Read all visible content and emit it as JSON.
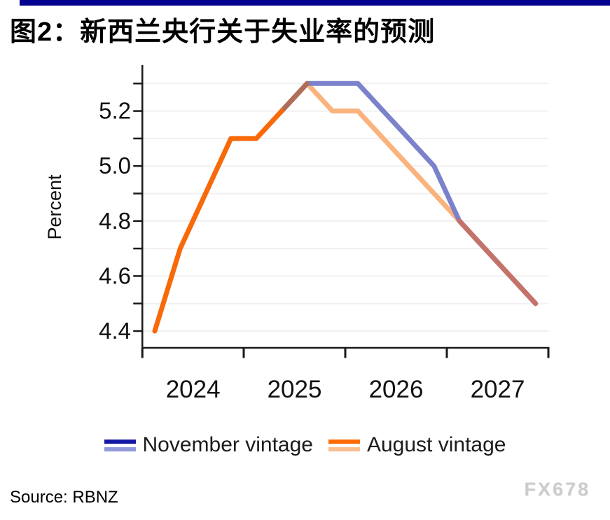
{
  "header": {
    "title": "图2：新西兰央行关于失业率的预测",
    "accent_color": "#02028e"
  },
  "chart_data": {
    "type": "line",
    "title": "图2：新西兰央行关于失业率的预测",
    "ylabel": "Percent",
    "ylim": [
      4.35,
      5.35
    ],
    "ytick_step": 0.1,
    "yticks_all": [
      4.4,
      4.5,
      4.6,
      4.7,
      4.8,
      4.9,
      5.0,
      5.1,
      5.2,
      5.3
    ],
    "yticks_labeled": [
      "4.4",
      "4.6",
      "4.8",
      "5.0",
      "5.2"
    ],
    "x_tick_years": [
      "2024",
      "2025",
      "2026",
      "2027"
    ],
    "grid": true,
    "legend_position": "bottom",
    "categories": [
      "2024Q1",
      "2024Q2",
      "2024Q3",
      "2024Q4",
      "2025Q1",
      "2025Q2",
      "2025Q3",
      "2025Q4",
      "2026Q1",
      "2026Q2",
      "2026Q3",
      "2026Q4",
      "2027Q1",
      "2027Q2",
      "2027Q3",
      "2027Q4"
    ],
    "series": [
      {
        "name": "November vintage",
        "start_index": 5,
        "values": [
          5.2,
          5.3,
          5.3,
          5.3,
          5.2,
          5.1,
          5.0,
          4.8,
          4.7,
          4.6,
          4.5
        ],
        "line_color": "#7b82cb",
        "legend_colors": [
          "#1319a5",
          "#8f99db"
        ]
      },
      {
        "name": "August vintage",
        "start_index": 0,
        "values": [
          4.4,
          4.7,
          4.9,
          5.1,
          5.1,
          5.2,
          5.3,
          5.2,
          5.2,
          5.1,
          5.0,
          4.9,
          4.8,
          4.7,
          4.6,
          4.5
        ],
        "actual_through_index": 5,
        "line_color": "#fbb37e",
        "actual_line_color": "#f8690a",
        "legend_colors": [
          "#ff6a00",
          "#fbbe8f"
        ]
      }
    ],
    "overlap_segments": [
      {
        "from_index": 5,
        "to_index": 6,
        "color": "#b06e58"
      },
      {
        "from_index": 12,
        "to_index": 15,
        "color": "#c4736a"
      }
    ],
    "grid_color": "#f0f0f0",
    "axis_color": "#1a1a1a"
  },
  "footer": {
    "source": "Source: RBNZ",
    "watermark": "FX678"
  }
}
